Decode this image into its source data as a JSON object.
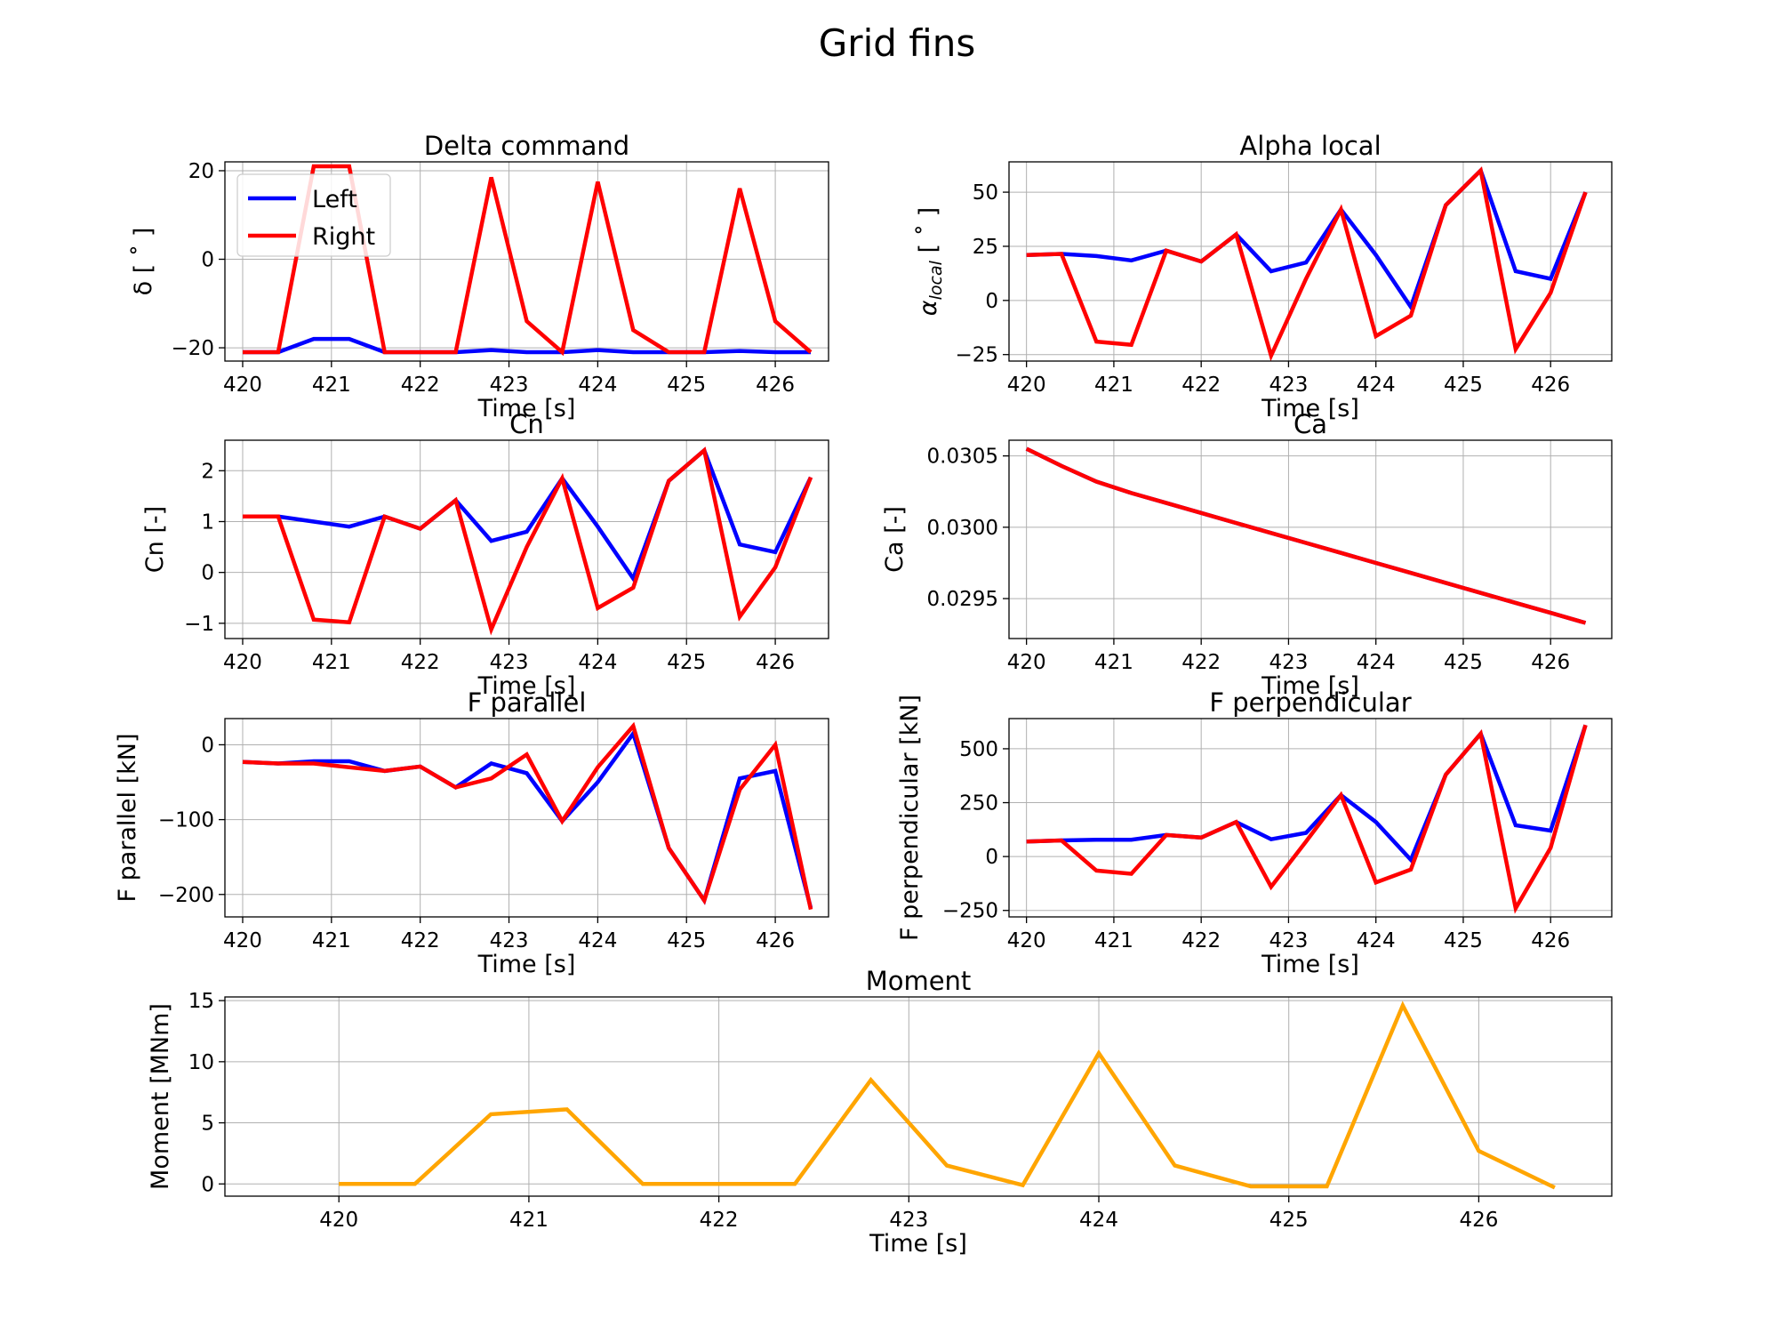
{
  "figure": {
    "title": "Grid fins"
  },
  "chart_data": [
    {
      "type": "line",
      "title": "Delta command",
      "xlabel": "Time [s]",
      "ylabel": "δ [ ˚ ]",
      "xlim": [
        419.8,
        426.6
      ],
      "ylim": [
        -23,
        22
      ],
      "xticks": [
        420,
        421,
        422,
        423,
        424,
        425,
        426
      ],
      "yticks": [
        -20,
        0,
        20
      ],
      "grid": true,
      "legend": "top-left",
      "x": [
        420,
        420.4,
        420.8,
        421.2,
        421.6,
        422,
        422.4,
        422.8,
        423.2,
        423.6,
        424,
        424.4,
        424.8,
        425.2,
        425.6,
        426,
        426.4
      ],
      "series": [
        {
          "name": "Left",
          "color": "#0000ff",
          "values": [
            -21,
            -21,
            -18,
            -18,
            -21,
            -21,
            -21,
            -20.5,
            -21,
            -21,
            -20.5,
            -21,
            -21,
            -21,
            -20.7,
            -21,
            -21
          ]
        },
        {
          "name": "Right",
          "color": "#ff0000",
          "values": [
            -21,
            -21,
            21,
            21,
            -21,
            -21,
            -21,
            18.5,
            -14,
            -21,
            17.5,
            -16,
            -21,
            -21,
            16,
            -14,
            -21
          ]
        }
      ]
    },
    {
      "type": "line",
      "title": "Alpha local",
      "xlabel": "Time [s]",
      "ylabel": "α",
      "ylabel_sub": "local",
      "ylabel_tail": " [ ˚ ]",
      "xlim": [
        419.8,
        426.7
      ],
      "ylim": [
        -28,
        64
      ],
      "xticks": [
        420,
        421,
        422,
        423,
        424,
        425,
        426
      ],
      "yticks": [
        -25,
        0,
        25,
        50
      ],
      "grid": true,
      "x": [
        420,
        420.4,
        420.8,
        421.2,
        421.6,
        422,
        422.4,
        422.8,
        423.2,
        423.6,
        424,
        424.4,
        424.8,
        425.2,
        425.6,
        426,
        426.4
      ],
      "series": [
        {
          "color": "#0000ff",
          "values": [
            21,
            21.5,
            20.5,
            18.5,
            23,
            18,
            30.5,
            13.5,
            17.5,
            42,
            21,
            -3,
            44,
            60,
            13.5,
            10,
            50
          ]
        },
        {
          "color": "#ff0000",
          "values": [
            21,
            21.5,
            -19,
            -20.5,
            23,
            18,
            30.5,
            -25.5,
            10,
            42,
            -16.5,
            -7,
            44,
            60,
            -22.5,
            3.5,
            50
          ]
        }
      ]
    },
    {
      "type": "line",
      "title": "Cn",
      "xlabel": "Time [s]",
      "ylabel": "Cn [-]",
      "xlim": [
        419.8,
        426.6
      ],
      "ylim": [
        -1.3,
        2.6
      ],
      "xticks": [
        420,
        421,
        422,
        423,
        424,
        425,
        426
      ],
      "yticks": [
        -1,
        0,
        1,
        2
      ],
      "grid": true,
      "x": [
        420,
        420.4,
        420.8,
        421.2,
        421.6,
        422,
        422.4,
        422.8,
        423.2,
        423.6,
        424,
        424.4,
        424.8,
        425.2,
        425.6,
        426,
        426.4
      ],
      "series": [
        {
          "color": "#0000ff",
          "values": [
            1.1,
            1.1,
            1.0,
            0.9,
            1.1,
            0.86,
            1.42,
            0.62,
            0.8,
            1.85,
            0.9,
            -0.12,
            1.8,
            2.4,
            0.55,
            0.4,
            1.87
          ]
        },
        {
          "color": "#ff0000",
          "values": [
            1.1,
            1.1,
            -0.93,
            -0.98,
            1.1,
            0.86,
            1.42,
            -1.12,
            0.5,
            1.85,
            -0.7,
            -0.3,
            1.8,
            2.4,
            -0.87,
            0.1,
            1.87
          ]
        }
      ]
    },
    {
      "type": "line",
      "title": "Ca",
      "xlabel": "Time [s]",
      "ylabel": "Ca [-]",
      "xlim": [
        419.8,
        426.7
      ],
      "ylim": [
        0.02922,
        0.03061
      ],
      "xticks": [
        420,
        421,
        422,
        423,
        424,
        425,
        426
      ],
      "yticks": [
        0.0295,
        0.03,
        0.0305
      ],
      "ytick_labels": [
        "0.0295",
        "0.0300",
        "0.0305"
      ],
      "grid": true,
      "x": [
        420,
        420.4,
        420.8,
        421.2,
        421.6,
        422,
        422.4,
        422.8,
        423.2,
        423.6,
        424,
        424.4,
        424.8,
        425.2,
        425.6,
        426,
        426.4
      ],
      "series": [
        {
          "color": "#0000ff",
          "values": [
            0.03055,
            0.03043,
            0.03032,
            0.03024,
            0.03017,
            0.0301,
            0.03003,
            0.02996,
            0.02989,
            0.02982,
            0.02975,
            0.02968,
            0.02961,
            0.02954,
            0.02947,
            0.0294,
            0.02933
          ]
        },
        {
          "color": "#ff0000",
          "values": [
            0.03055,
            0.03043,
            0.03032,
            0.03024,
            0.03017,
            0.0301,
            0.03003,
            0.02996,
            0.02989,
            0.02982,
            0.02975,
            0.02968,
            0.02961,
            0.02954,
            0.02947,
            0.0294,
            0.02933
          ]
        }
      ]
    },
    {
      "type": "line",
      "title": "F parallel",
      "xlabel": "Time [s]",
      "ylabel": "F parallel [kN]",
      "xlim": [
        419.8,
        426.6
      ],
      "ylim": [
        -230,
        35
      ],
      "xticks": [
        420,
        421,
        422,
        423,
        424,
        425,
        426
      ],
      "yticks": [
        -200,
        -100,
        0
      ],
      "grid": true,
      "x": [
        420,
        420.4,
        420.8,
        421.2,
        421.6,
        422,
        422.4,
        422.8,
        423.2,
        423.6,
        424,
        424.4,
        424.8,
        425.2,
        425.6,
        426,
        426.4
      ],
      "series": [
        {
          "color": "#0000ff",
          "values": [
            -23,
            -25,
            -22,
            -22,
            -35,
            -29,
            -57,
            -25,
            -38,
            -102,
            -50,
            15,
            -138,
            -208,
            -45,
            -35,
            -218
          ]
        },
        {
          "color": "#ff0000",
          "values": [
            -23,
            -25,
            -25,
            -30,
            -35,
            -29,
            -57,
            -45,
            -13,
            -102,
            -30,
            25,
            -138,
            -208,
            -60,
            0,
            -220
          ]
        }
      ]
    },
    {
      "type": "line",
      "title": "F perpendicular",
      "xlabel": "Time [s]",
      "ylabel": "F perpendicular [kN]",
      "xlim": [
        419.8,
        426.7
      ],
      "ylim": [
        -280,
        640
      ],
      "xticks": [
        420,
        421,
        422,
        423,
        424,
        425,
        426
      ],
      "yticks": [
        -250,
        0,
        250,
        500
      ],
      "grid": true,
      "x": [
        420,
        420.4,
        420.8,
        421.2,
        421.6,
        422,
        422.4,
        422.8,
        423.2,
        423.6,
        424,
        424.4,
        424.8,
        425.2,
        425.6,
        426,
        426.4
      ],
      "series": [
        {
          "color": "#0000ff",
          "values": [
            70,
            75,
            78,
            78,
            100,
            88,
            160,
            80,
            110,
            285,
            160,
            -15,
            380,
            570,
            145,
            120,
            610
          ]
        },
        {
          "color": "#ff0000",
          "values": [
            70,
            75,
            -65,
            -80,
            100,
            88,
            160,
            -140,
            70,
            285,
            -120,
            -60,
            380,
            570,
            -240,
            40,
            610
          ]
        }
      ]
    },
    {
      "type": "line",
      "title": "Moment",
      "xlabel": "Time [s]",
      "ylabel": "Moment [MNm]",
      "xlim": [
        419.4,
        426.7
      ],
      "ylim": [
        -1,
        15.3
      ],
      "xticks": [
        420,
        421,
        422,
        423,
        424,
        425,
        426
      ],
      "yticks": [
        0,
        5,
        10,
        15
      ],
      "grid": true,
      "x": [
        420,
        420.4,
        420.8,
        421.2,
        421.6,
        422,
        422.4,
        422.8,
        423.2,
        423.6,
        424,
        424.4,
        424.8,
        425.2,
        425.6,
        426,
        426.4
      ],
      "series": [
        {
          "color": "#ffa500",
          "values": [
            0,
            0,
            5.7,
            6.1,
            0,
            0,
            0,
            8.5,
            1.5,
            -0.1,
            10.7,
            1.5,
            -0.2,
            -0.2,
            14.6,
            2.7,
            -0.3
          ]
        }
      ]
    }
  ]
}
